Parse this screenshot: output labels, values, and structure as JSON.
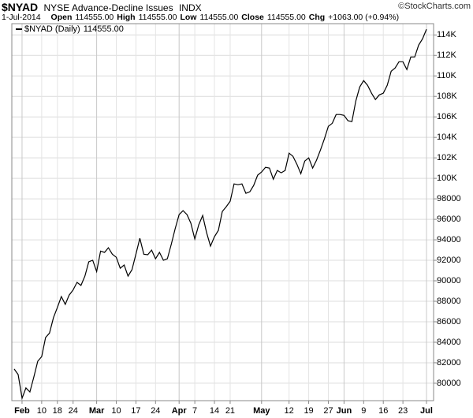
{
  "chart_data": {
    "type": "line",
    "title": "$NYAD",
    "subtitle": "NYSE Advance-Decline Issues",
    "exchange": "INDX",
    "source": "©StockCharts.com",
    "date": "1-Jul-2014",
    "quote": [
      {
        "label": "Open",
        "value": "114555.00"
      },
      {
        "label": "High",
        "value": "114555.00"
      },
      {
        "label": "Low",
        "value": "114555.00"
      },
      {
        "label": "Close",
        "value": "114555.00"
      },
      {
        "label": "Chg",
        "value": "+1063.00 (+0.94%)"
      }
    ],
    "x": [
      null,
      null,
      "Feb",
      null,
      null,
      null,
      null,
      "10",
      null,
      null,
      null,
      "18",
      null,
      null,
      null,
      "24",
      null,
      null,
      null,
      null,
      null,
      "Mar",
      null,
      null,
      null,
      null,
      "10",
      null,
      null,
      null,
      null,
      "17",
      null,
      null,
      null,
      null,
      "24",
      null,
      null,
      null,
      null,
      null,
      "Apr",
      null,
      null,
      null,
      "7",
      null,
      null,
      null,
      null,
      "14",
      null,
      null,
      null,
      "21",
      null,
      null,
      null,
      null,
      null,
      null,
      null,
      "May",
      null,
      null,
      null,
      null,
      null,
      null,
      "12",
      null,
      null,
      null,
      null,
      "19",
      null,
      null,
      null,
      null,
      "27",
      null,
      null,
      null,
      "Jun",
      null,
      null,
      null,
      null,
      "9",
      null,
      null,
      null,
      null,
      "16",
      null,
      null,
      null,
      null,
      "23",
      null,
      null,
      null,
      null,
      null,
      "Jul"
    ],
    "series": [
      {
        "name": "$NYAD (Daily)",
        "last_label": "114555.00",
        "color": "#000000",
        "values": [
          81385,
          80850,
          78540,
          79540,
          79150,
          80600,
          82150,
          82600,
          84460,
          84900,
          86400,
          87400,
          88460,
          87700,
          88600,
          89100,
          89850,
          89550,
          90460,
          91850,
          92000,
          90900,
          92900,
          92770,
          93230,
          92600,
          92300,
          91230,
          91540,
          90460,
          91080,
          92600,
          94150,
          92600,
          92540,
          93000,
          92150,
          92770,
          92000,
          92150,
          93540,
          95080,
          96460,
          96850,
          96460,
          95620,
          94080,
          95460,
          96380,
          94690,
          93380,
          94300,
          94920,
          96770,
          97230,
          97770,
          99460,
          99380,
          99460,
          98540,
          98690,
          99310,
          100310,
          100620,
          101080,
          101000,
          99920,
          100770,
          100540,
          100770,
          102460,
          102150,
          101380,
          100460,
          101690,
          102000,
          101000,
          101770,
          102770,
          103850,
          105080,
          105380,
          106230,
          106230,
          106150,
          105620,
          105540,
          107540,
          108920,
          109540,
          109080,
          108310,
          107690,
          108150,
          108310,
          109080,
          110460,
          110770,
          111380,
          111380,
          110620,
          111850,
          111850,
          113000,
          113620,
          114555
        ]
      }
    ],
    "ylim": [
      78300,
      115100
    ],
    "yticks": [
      80000,
      82000,
      84000,
      86000,
      88000,
      90000,
      92000,
      94000,
      96000,
      98000,
      {
        "value": 100000,
        "label": "100K"
      },
      {
        "value": 102000,
        "label": "102K"
      },
      {
        "value": 104000,
        "label": "104K"
      },
      {
        "value": 106000,
        "label": "106K"
      },
      {
        "value": 108000,
        "label": "108K"
      },
      {
        "value": 110000,
        "label": "110K"
      },
      {
        "value": 112000,
        "label": "112K"
      },
      {
        "value": 114000,
        "label": "114K"
      }
    ],
    "grid": true
  }
}
